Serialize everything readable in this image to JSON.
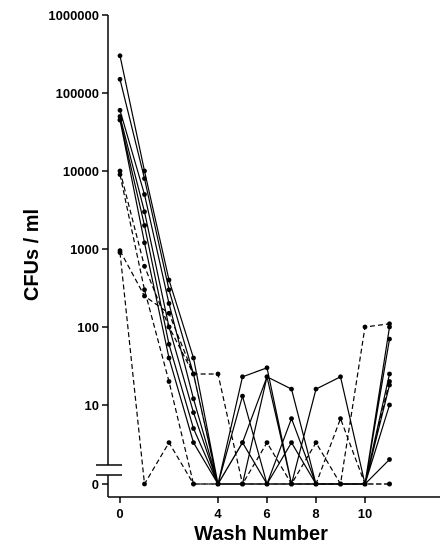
{
  "chart_data": {
    "type": "line",
    "xlabel": "Wash Number",
    "ylabel": "CFUs / ml",
    "y_scale": "log",
    "ylim": [
      1,
      1000000
    ],
    "y_zero_break": true,
    "y_zero_label": "0",
    "xlim": [
      -0.5,
      12.5
    ],
    "x_ticks": [
      0,
      4,
      6,
      8,
      10
    ],
    "x_tick_labels": [
      "0",
      "4",
      "6",
      "8",
      "10"
    ],
    "y_ticks": [
      10,
      100,
      1000,
      10000,
      100000,
      1000000
    ],
    "y_tick_labels": [
      "10",
      "100",
      "1000",
      "10000",
      "100000",
      "1000000"
    ],
    "grid": false,
    "legend": "none",
    "series": [
      {
        "style": "solid",
        "x": [
          0,
          1,
          2,
          3,
          4,
          5,
          6,
          7,
          8,
          9,
          10,
          11
        ],
        "y": [
          300000,
          10000,
          400,
          40,
          0,
          3.3,
          23,
          16,
          0,
          0,
          0,
          25
        ]
      },
      {
        "style": "solid",
        "x": [
          0,
          1,
          2,
          3,
          4,
          5,
          6,
          7,
          8,
          9,
          10,
          11
        ],
        "y": [
          150000,
          8000,
          300,
          25,
          0,
          0,
          0,
          0,
          16,
          23,
          0,
          100
        ]
      },
      {
        "style": "solid",
        "x": [
          0,
          1,
          2,
          3,
          4,
          5,
          6,
          7,
          8,
          9,
          10,
          11
        ],
        "y": [
          60000,
          5000,
          200,
          12,
          0,
          23,
          30,
          0,
          0,
          0,
          0,
          70
        ]
      },
      {
        "style": "solid",
        "x": [
          0,
          1,
          2,
          3,
          4,
          5,
          6,
          7,
          8,
          9,
          10,
          11
        ],
        "y": [
          50000,
          3000,
          100,
          8,
          0,
          3.3,
          0,
          6.7,
          0,
          0,
          0,
          18
        ]
      },
      {
        "style": "solid",
        "x": [
          0,
          1,
          2,
          3,
          4,
          5,
          6,
          7,
          8,
          9,
          10,
          11
        ],
        "y": [
          45000,
          2000,
          60,
          5,
          0,
          13,
          0,
          3.3,
          0,
          0,
          0,
          10
        ]
      },
      {
        "style": "solid",
        "x": [
          0,
          1,
          2,
          3,
          4,
          5,
          6,
          7,
          8,
          9,
          10,
          11
        ],
        "y": [
          45000,
          1200,
          40,
          3.3,
          0,
          0,
          23,
          0,
          0,
          0,
          0,
          2
        ]
      },
      {
        "style": "dashed",
        "x": [
          0,
          1,
          2,
          3,
          4,
          5,
          6,
          7,
          8,
          9,
          10,
          11
        ],
        "y": [
          10000,
          600,
          100,
          25,
          25,
          0,
          0,
          0,
          0,
          0,
          100,
          110
        ]
      },
      {
        "style": "dashed",
        "x": [
          0,
          1,
          2,
          3,
          4,
          5,
          6,
          7,
          8,
          9,
          10,
          11
        ],
        "y": [
          950,
          250,
          150,
          25,
          0,
          0,
          3.3,
          0,
          3.3,
          0,
          0,
          0
        ]
      },
      {
        "style": "dashed",
        "x": [
          0,
          1,
          2,
          3,
          4,
          5,
          6,
          7,
          8,
          9,
          10,
          11
        ],
        "y": [
          9000,
          300,
          20,
          0,
          0,
          0,
          0,
          0,
          0,
          6.7,
          0,
          20
        ]
      },
      {
        "style": "dashed",
        "x": [
          0,
          1,
          2,
          3,
          4,
          5,
          6,
          7,
          8,
          9,
          10,
          11
        ],
        "y": [
          900,
          0,
          3.3,
          0,
          0,
          0,
          0,
          0,
          0,
          0,
          0,
          0
        ]
      }
    ]
  }
}
